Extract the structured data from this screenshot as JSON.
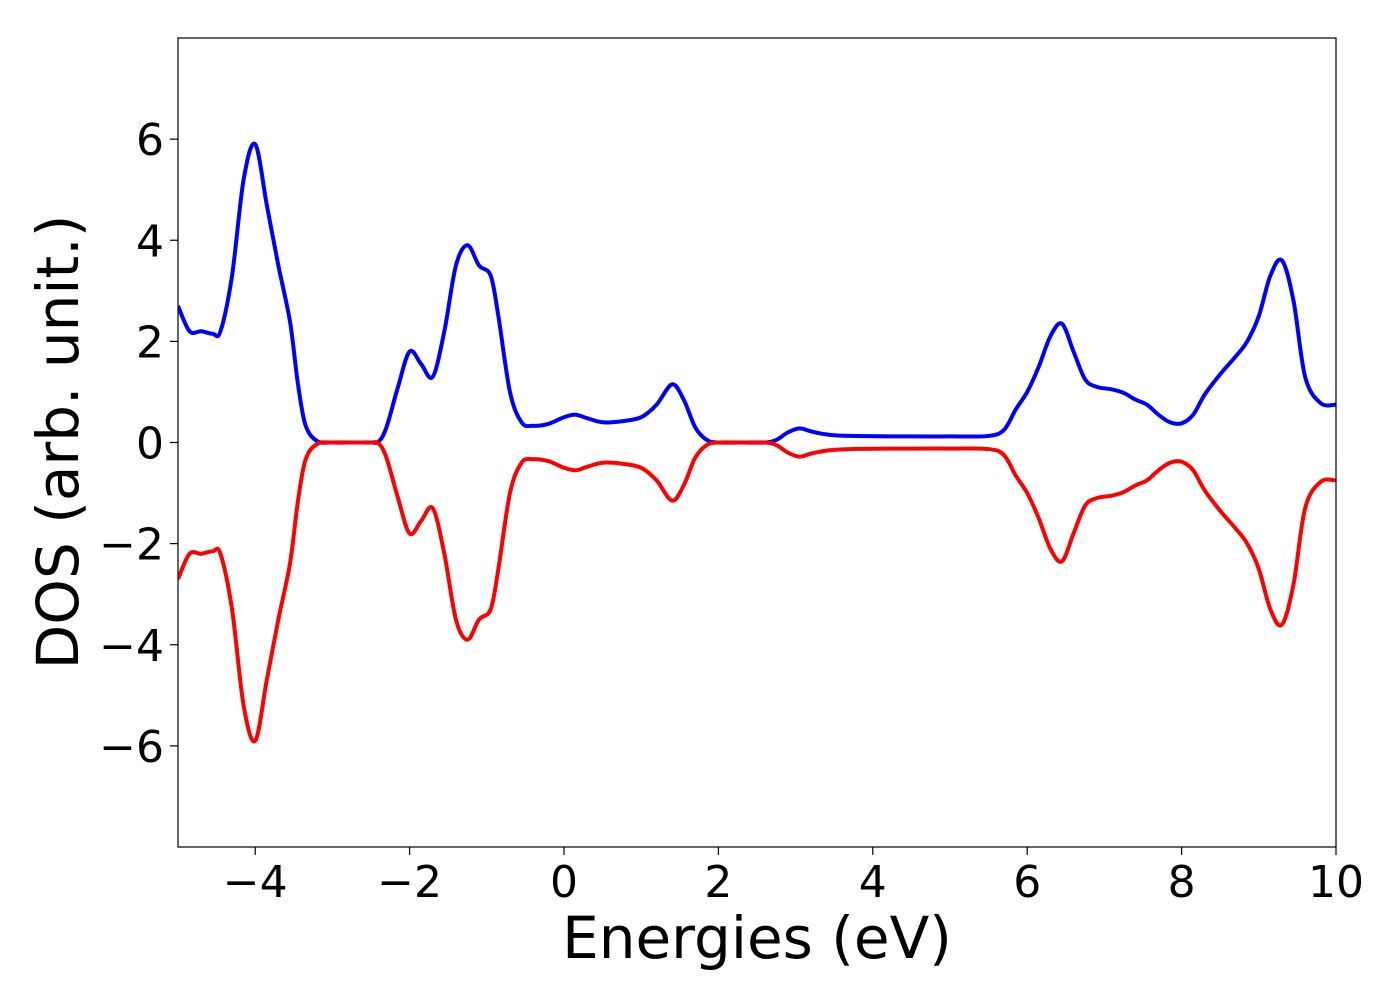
{
  "chart_data": {
    "type": "line",
    "xlabel": "Energies (eV)",
    "ylabel": "DOS (arb. unit.)",
    "xlim": [
      -5,
      10
    ],
    "ylim": [
      -8,
      8
    ],
    "xticks": [
      -4,
      -2,
      0,
      2,
      4,
      6,
      8,
      10
    ],
    "xtick_labels": [
      "−4",
      "−2",
      "0",
      "2",
      "4",
      "6",
      "8",
      "10"
    ],
    "yticks": [
      -6,
      -4,
      -2,
      0,
      2,
      4,
      6
    ],
    "ytick_labels": [
      "−6",
      "−4",
      "−2",
      "0",
      "2",
      "4",
      "6"
    ],
    "grid": false,
    "series": [
      {
        "color": "#0000ff",
        "x": [
          -5.0,
          -4.85,
          -4.7,
          -4.55,
          -4.45,
          -4.3,
          -4.15,
          -4.0,
          -3.85,
          -3.7,
          -3.55,
          -3.45,
          -3.35,
          -3.2,
          -3.0,
          -2.7,
          -2.5,
          -2.4,
          -2.3,
          -2.15,
          -2.0,
          -1.85,
          -1.7,
          -1.55,
          -1.4,
          -1.25,
          -1.1,
          -0.95,
          -0.85,
          -0.7,
          -0.55,
          -0.4,
          -0.2,
          0.0,
          0.15,
          0.3,
          0.5,
          0.75,
          1.0,
          1.2,
          1.4,
          1.55,
          1.7,
          1.85,
          2.0,
          2.3,
          2.6,
          2.75,
          2.9,
          3.05,
          3.2,
          3.4,
          3.7,
          4.5,
          5.0,
          5.5,
          5.7,
          5.85,
          6.0,
          6.15,
          6.3,
          6.45,
          6.6,
          6.75,
          6.9,
          7.1,
          7.25,
          7.4,
          7.55,
          7.7,
          7.85,
          8.0,
          8.15,
          8.3,
          8.5,
          8.7,
          8.85,
          9.0,
          9.15,
          9.3,
          9.45,
          9.6,
          9.8,
          10.0
        ],
        "y": [
          2.7,
          2.2,
          2.2,
          2.15,
          2.2,
          3.3,
          5.2,
          5.9,
          4.7,
          3.5,
          2.4,
          1.2,
          0.35,
          0.03,
          0.0,
          0.0,
          0.0,
          0.02,
          0.3,
          1.1,
          1.8,
          1.55,
          1.3,
          2.2,
          3.5,
          3.9,
          3.5,
          3.3,
          2.5,
          1.0,
          0.4,
          0.33,
          0.37,
          0.5,
          0.55,
          0.48,
          0.4,
          0.42,
          0.5,
          0.75,
          1.15,
          0.85,
          0.3,
          0.05,
          0.0,
          0.0,
          0.0,
          0.05,
          0.2,
          0.28,
          0.22,
          0.16,
          0.13,
          0.12,
          0.12,
          0.13,
          0.25,
          0.65,
          1.0,
          1.5,
          2.1,
          2.35,
          1.8,
          1.25,
          1.1,
          1.05,
          0.98,
          0.85,
          0.75,
          0.55,
          0.4,
          0.38,
          0.55,
          0.95,
          1.35,
          1.7,
          2.0,
          2.5,
          3.3,
          3.6,
          2.8,
          1.3,
          0.78,
          0.75
        ]
      },
      {
        "color": "#ff0000",
        "x": [
          -5.0,
          -4.85,
          -4.7,
          -4.55,
          -4.45,
          -4.3,
          -4.15,
          -4.0,
          -3.85,
          -3.7,
          -3.55,
          -3.45,
          -3.35,
          -3.2,
          -3.0,
          -2.7,
          -2.5,
          -2.4,
          -2.3,
          -2.15,
          -2.0,
          -1.85,
          -1.7,
          -1.55,
          -1.4,
          -1.25,
          -1.1,
          -0.95,
          -0.85,
          -0.7,
          -0.55,
          -0.4,
          -0.2,
          0.0,
          0.15,
          0.3,
          0.5,
          0.75,
          1.0,
          1.2,
          1.4,
          1.55,
          1.7,
          1.85,
          2.0,
          2.3,
          2.6,
          2.75,
          2.9,
          3.05,
          3.2,
          3.4,
          3.7,
          4.5,
          5.0,
          5.5,
          5.7,
          5.85,
          6.0,
          6.15,
          6.3,
          6.45,
          6.6,
          6.75,
          6.9,
          7.1,
          7.25,
          7.4,
          7.55,
          7.7,
          7.85,
          8.0,
          8.15,
          8.3,
          8.5,
          8.7,
          8.85,
          9.0,
          9.15,
          9.3,
          9.45,
          9.6,
          9.8,
          10.0
        ],
        "y": [
          -2.7,
          -2.2,
          -2.2,
          -2.15,
          -2.2,
          -3.3,
          -5.2,
          -5.9,
          -4.7,
          -3.5,
          -2.4,
          -1.2,
          -0.35,
          -0.03,
          0.0,
          0.0,
          0.0,
          -0.02,
          -0.3,
          -1.1,
          -1.8,
          -1.55,
          -1.3,
          -2.2,
          -3.5,
          -3.9,
          -3.5,
          -3.3,
          -2.5,
          -1.0,
          -0.4,
          -0.33,
          -0.37,
          -0.5,
          -0.55,
          -0.48,
          -0.4,
          -0.42,
          -0.5,
          -0.75,
          -1.15,
          -0.85,
          -0.3,
          -0.05,
          0.0,
          0.0,
          0.0,
          -0.05,
          -0.2,
          -0.28,
          -0.22,
          -0.16,
          -0.13,
          -0.12,
          -0.12,
          -0.13,
          -0.25,
          -0.65,
          -1.0,
          -1.5,
          -2.1,
          -2.35,
          -1.8,
          -1.25,
          -1.1,
          -1.05,
          -0.98,
          -0.85,
          -0.75,
          -0.55,
          -0.4,
          -0.38,
          -0.55,
          -0.95,
          -1.35,
          -1.7,
          -2.0,
          -2.5,
          -3.3,
          -3.6,
          -2.8,
          -1.3,
          -0.78,
          -0.75
        ]
      }
    ]
  }
}
